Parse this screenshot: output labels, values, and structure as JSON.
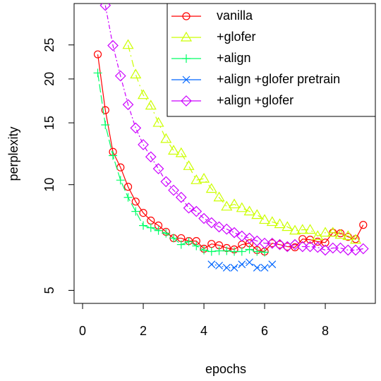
{
  "chart_data": {
    "type": "line",
    "x_label": "epochs",
    "y_label": "perplexity",
    "ylog": true,
    "legend": "top-right",
    "xlim": [
      -0.28,
      9.65
    ],
    "ylim": [
      4.59,
      32.8
    ],
    "xticks": [
      0,
      2,
      4,
      6,
      8
    ],
    "yticks": [
      5,
      10,
      15,
      20,
      25
    ],
    "series": [
      {
        "name": "vanilla",
        "color": "#FF0000",
        "marker": "circle",
        "x": [
          0.5,
          0.75,
          1,
          1.25,
          1.5,
          1.75,
          2,
          2.25,
          2.5,
          2.75,
          3,
          3.25,
          3.5,
          3.75,
          4,
          4.25,
          4.5,
          4.75,
          5,
          5.25,
          5.5,
          5.75,
          6,
          6.25,
          6.5,
          6.75,
          7,
          7.25,
          7.5,
          7.75,
          8,
          8.25,
          8.5,
          8.75,
          9,
          9.25
        ],
        "values": [
          23.5,
          16.3,
          12.4,
          11.2,
          9.86,
          8.95,
          8.31,
          7.9,
          7.65,
          7.34,
          7.04,
          7.04,
          6.91,
          6.91,
          6.57,
          6.78,
          6.72,
          6.6,
          6.54,
          6.75,
          6.81,
          6.51,
          6.45,
          6.81,
          6.75,
          6.66,
          6.63,
          7.0,
          6.97,
          6.88,
          6.84,
          7.3,
          7.27,
          7.1,
          7.0,
          7.68
        ]
      },
      {
        "name": "+glofer",
        "color": "#CCFF00",
        "marker": "triangle",
        "x": [
          1.5,
          1.75,
          2,
          2.25,
          2.5,
          2.75,
          3,
          3.25,
          3.5,
          3.75,
          4,
          4.25,
          4.5,
          4.75,
          5,
          5.25,
          5.5,
          5.75,
          6,
          6.25,
          6.5,
          6.75,
          7,
          7.25,
          7.5,
          7.75,
          8,
          8.25,
          8.5,
          8.75,
          9
        ],
        "values": [
          25.0,
          20.6,
          18.0,
          16.8,
          15.0,
          13.5,
          12.5,
          12.3,
          11.3,
          10.3,
          10.4,
          9.73,
          9.2,
          8.66,
          8.79,
          8.58,
          8.39,
          8.2,
          7.94,
          7.83,
          7.72,
          7.58,
          7.4,
          7.44,
          7.44,
          7.14,
          7.3,
          7.3,
          7.2,
          7.14,
          6.97
        ]
      },
      {
        "name": "+align",
        "color": "#00FF66",
        "marker": "plus",
        "x": [
          0.5,
          0.75,
          1,
          1.25,
          1.5,
          1.75,
          2,
          2.25,
          2.5,
          2.75,
          3,
          3.25,
          3.5,
          3.75,
          4,
          4.25,
          4.5,
          4.75,
          5,
          5.25,
          5.5,
          5.75,
          6
        ],
        "values": [
          20.8,
          14.8,
          12.1,
          10.3,
          9.2,
          8.39,
          7.65,
          7.54,
          7.4,
          7.27,
          7.04,
          6.75,
          6.88,
          6.69,
          6.51,
          6.45,
          6.48,
          6.48,
          6.45,
          6.45,
          6.54,
          6.45,
          6.42
        ]
      },
      {
        "name": "+align +glofer pretrain",
        "color": "#0066FF",
        "marker": "cross",
        "x": [
          4.25,
          4.5,
          4.75,
          5,
          5.25,
          5.5,
          5.75,
          6,
          6.25
        ],
        "values": [
          5.93,
          5.88,
          5.8,
          5.8,
          5.93,
          6.01,
          5.8,
          5.8,
          5.93
        ]
      },
      {
        "name": "+align +glofer",
        "color": "#CC00FF",
        "marker": "diamond",
        "x": [
          0.75,
          1,
          1.25,
          1.5,
          1.75,
          2,
          2.25,
          2.5,
          2.75,
          3,
          3.25,
          3.5,
          3.75,
          4,
          4.25,
          4.5,
          4.75,
          5,
          5.25,
          5.5,
          5.75,
          6,
          6.25,
          6.5,
          6.75,
          7,
          7.25,
          7.5,
          7.75,
          8,
          8.25,
          8.5,
          8.75,
          9,
          9.25
        ],
        "values": [
          32.4,
          24.9,
          20.4,
          16.9,
          14.5,
          13.0,
          12.0,
          11.1,
          10.2,
          9.64,
          9.2,
          8.58,
          8.39,
          8.01,
          7.79,
          7.58,
          7.47,
          7.3,
          7.14,
          7.04,
          6.91,
          6.81,
          6.81,
          6.75,
          6.66,
          6.75,
          6.66,
          6.66,
          6.63,
          6.51,
          6.6,
          6.6,
          6.51,
          6.51,
          6.57
        ]
      }
    ]
  }
}
